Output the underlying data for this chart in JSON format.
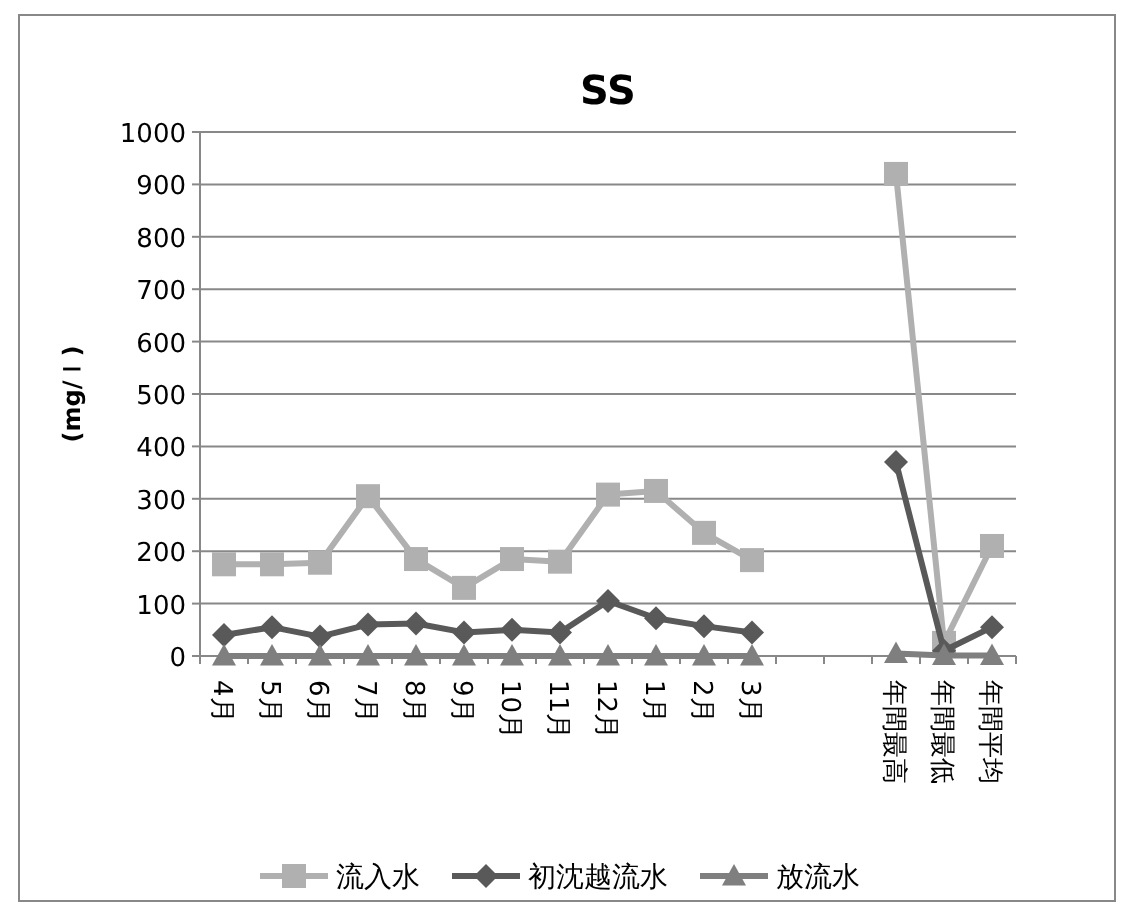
{
  "chart_data": {
    "type": "line",
    "title": "SS",
    "ylabel": "(mg/ｌ)",
    "categories": [
      "4月",
      "5月",
      "6月",
      "7月",
      "8月",
      "9月",
      "10月",
      "11月",
      "12月",
      "1月",
      "2月",
      "3月",
      null,
      null,
      "年間最高",
      "年間最低",
      "年間平均"
    ],
    "ylim": [
      0,
      1000
    ],
    "yticks": [
      0,
      100,
      200,
      300,
      400,
      500,
      600,
      700,
      800,
      900,
      1000
    ],
    "grid": "y",
    "legend": "bottom",
    "series": [
      {
        "name": "流入水",
        "color": "#b0b0b0",
        "marker": "square",
        "values": [
          175,
          175,
          178,
          305,
          185,
          130,
          185,
          180,
          308,
          315,
          235,
          183,
          null,
          null,
          920,
          25,
          210
        ]
      },
      {
        "name": "初沈越流水",
        "color": "#595959",
        "marker": "diamond",
        "values": [
          40,
          55,
          37,
          60,
          62,
          45,
          50,
          45,
          105,
          72,
          57,
          45,
          null,
          null,
          370,
          10,
          55
        ]
      },
      {
        "name": "放流水",
        "color": "#7f7f7f",
        "marker": "triangle",
        "values": [
          0,
          0,
          0,
          0,
          0,
          0,
          0,
          0,
          0,
          0,
          0,
          0,
          null,
          null,
          5,
          1,
          1
        ]
      }
    ]
  }
}
